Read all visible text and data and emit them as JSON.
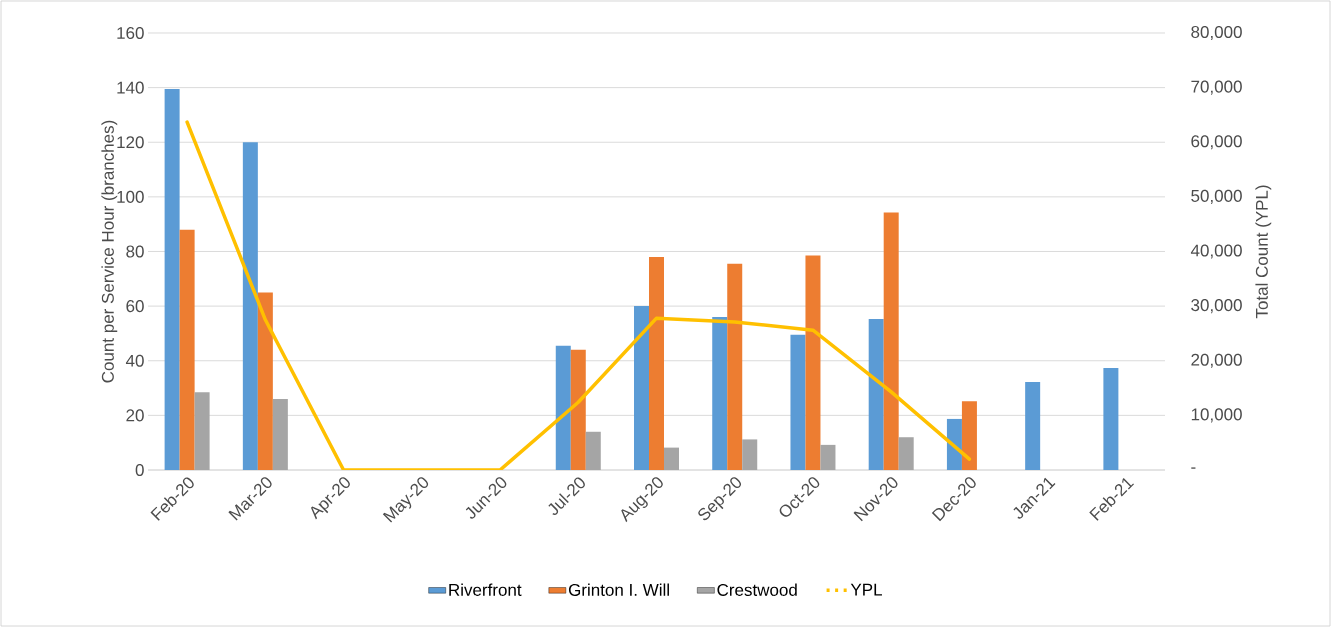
{
  "chart_data": {
    "type": "bar",
    "ylabel": "Count per Service Hour (branches)",
    "y2label": "Total Count (YPL)",
    "categories": [
      "Feb-20",
      "Mar-20",
      "Apr-20",
      "May-20",
      "Jun-20",
      "Jul-20",
      "Aug-20",
      "Sep-20",
      "Oct-20",
      "Nov-20",
      "Dec-20",
      "Jan-21",
      "Feb-21"
    ],
    "series": [
      {
        "name": "Riverfront",
        "color": "#5b9bd5",
        "values": [
          139.5,
          120,
          null,
          null,
          null,
          45.5,
          60,
          56,
          49.5,
          55.3,
          18.7,
          32.2,
          37.3
        ]
      },
      {
        "name": "Grinton I. Will",
        "color": "#ed7d31",
        "values": [
          88,
          65,
          null,
          null,
          null,
          44,
          78,
          75.5,
          78.5,
          94.3,
          25.2,
          null,
          null
        ]
      },
      {
        "name": "Crestwood",
        "color": "#a5a5a5",
        "values": [
          28.5,
          26,
          null,
          null,
          null,
          14,
          8.2,
          11.2,
          9.2,
          12,
          null,
          null,
          null
        ]
      },
      {
        "name": "YPL",
        "color": "#ffc000",
        "type": "line",
        "axis": "y2",
        "values": [
          63700,
          27500,
          0,
          0,
          0,
          12400,
          27800,
          27100,
          25600,
          14300,
          2000,
          null,
          null
        ]
      }
    ],
    "ylim": [
      0,
      160
    ],
    "yticks": [
      0,
      20,
      40,
      60,
      80,
      100,
      120,
      140,
      160
    ],
    "y2lim": [
      0,
      80000
    ],
    "y2ticks": [
      {
        "value": 0,
        "label": "-"
      },
      {
        "value": 10000,
        "label": "10,000"
      },
      {
        "value": 20000,
        "label": "20,000"
      },
      {
        "value": 30000,
        "label": "30,000"
      },
      {
        "value": 40000,
        "label": "40,000"
      },
      {
        "value": 50000,
        "label": "50,000"
      },
      {
        "value": 60000,
        "label": "60,000"
      },
      {
        "value": 70000,
        "label": "70,000"
      },
      {
        "value": 80000,
        "label": "80,000"
      }
    ],
    "grid": "y",
    "legend": "bottom",
    "marker": "none",
    "line_style": "solid"
  }
}
